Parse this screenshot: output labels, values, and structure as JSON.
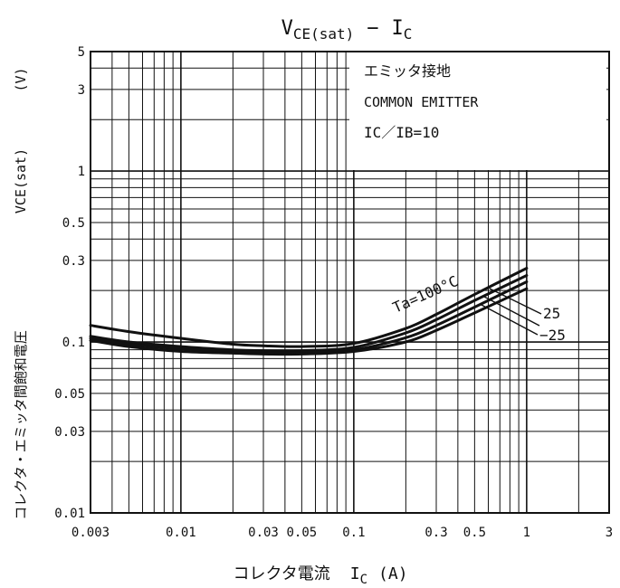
{
  "chart_data": {
    "type": "line",
    "title": "VCE(sat) − IC",
    "title_parts": {
      "v": "V",
      "v_sub": "CE(sat)",
      "dash": "−",
      "i": "I",
      "i_sub": "C"
    },
    "xlabel_text": "コレクタ電流",
    "xlabel_symbol": "I",
    "xlabel_sub": "C",
    "xlabel_unit": "(A)",
    "ylabel_text": "コレクタ・エミッタ間飽和電圧",
    "ylabel_symbol": "VCE(sat)",
    "ylabel_unit": "(V)",
    "x_scale": "log",
    "y_scale": "log",
    "xlim": [
      0.003,
      3
    ],
    "ylim": [
      0.01,
      5
    ],
    "x_ticks": [
      {
        "value": 0.003,
        "label": "0.003"
      },
      {
        "value": 0.01,
        "label": "0.01"
      },
      {
        "value": 0.03,
        "label": "0.03"
      },
      {
        "value": 0.05,
        "label": "0.05"
      },
      {
        "value": 0.1,
        "label": "0.1"
      },
      {
        "value": 0.3,
        "label": "0.3"
      },
      {
        "value": 0.5,
        "label": "0.5"
      },
      {
        "value": 1,
        "label": "1"
      },
      {
        "value": 3,
        "label": "3"
      }
    ],
    "y_ticks": [
      {
        "value": 0.01,
        "label": "0.01"
      },
      {
        "value": 0.03,
        "label": "0.03"
      },
      {
        "value": 0.05,
        "label": "0.05"
      },
      {
        "value": 0.1,
        "label": "0.1"
      },
      {
        "value": 0.3,
        "label": "0.3"
      },
      {
        "value": 0.5,
        "label": "0.5"
      },
      {
        "value": 1,
        "label": "1"
      },
      {
        "value": 3,
        "label": "3"
      },
      {
        "value": 5,
        "label": "5"
      }
    ],
    "grid": true,
    "annotations": [
      "エミッタ接地",
      "COMMON EMITTER",
      "IC／IB=10"
    ],
    "series": [
      {
        "name": "Ta=100°C",
        "x": [
          0.003,
          0.005,
          0.01,
          0.02,
          0.03,
          0.05,
          0.1,
          0.2,
          0.3,
          0.5,
          1
        ],
        "y": [
          0.125,
          0.115,
          0.105,
          0.097,
          0.095,
          0.094,
          0.098,
          0.12,
          0.145,
          0.19,
          0.27
        ]
      },
      {
        "name": "25",
        "x": [
          0.003,
          0.005,
          0.01,
          0.02,
          0.03,
          0.05,
          0.1,
          0.2,
          0.3,
          0.5,
          1
        ],
        "y": [
          0.108,
          0.1,
          0.094,
          0.09,
          0.089,
          0.089,
          0.093,
          0.113,
          0.135,
          0.175,
          0.245
        ]
      },
      {
        "name": "",
        "x": [
          0.003,
          0.005,
          0.01,
          0.02,
          0.03,
          0.05,
          0.1,
          0.2,
          0.3,
          0.5,
          1
        ],
        "y": [
          0.105,
          0.097,
          0.091,
          0.088,
          0.087,
          0.087,
          0.09,
          0.106,
          0.125,
          0.16,
          0.225
        ]
      },
      {
        "name": "−25",
        "x": [
          0.003,
          0.005,
          0.01,
          0.02,
          0.03,
          0.05,
          0.1,
          0.2,
          0.3,
          0.5,
          1
        ],
        "y": [
          0.102,
          0.094,
          0.088,
          0.086,
          0.085,
          0.085,
          0.088,
          0.1,
          0.117,
          0.148,
          0.205
        ]
      }
    ],
    "curve_labels": [
      {
        "text": "Ta=100°C"
      },
      {
        "text": "25"
      },
      {
        "text": "−25"
      }
    ]
  }
}
